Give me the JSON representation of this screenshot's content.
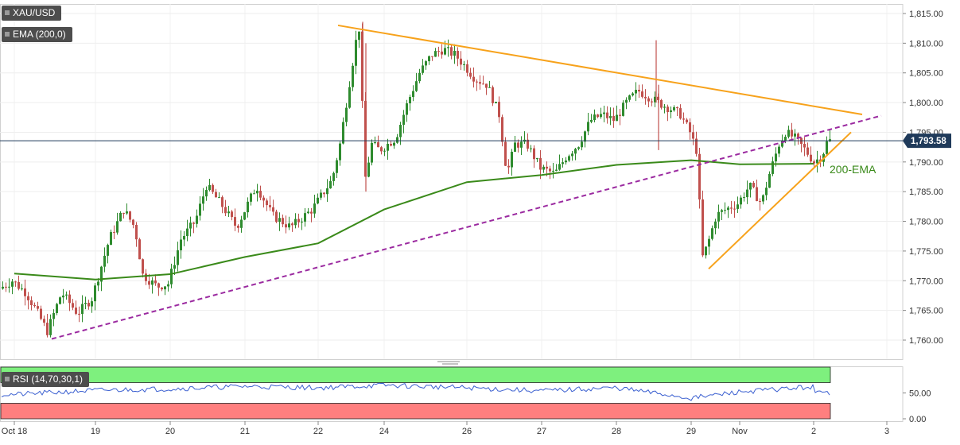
{
  "symbol_label": "XAU/USD",
  "ema_label": "EMA (200,0)",
  "ema_annotation": "200-EMA",
  "last_price_label": "1,793.58",
  "rsi_label": "RSI (14,70,30,1)",
  "colors": {
    "candle_up": "#2e8b2e",
    "candle_down": "#c0504d",
    "ema": "#3a8a1a",
    "trend_solid": "#f7a21b",
    "trend_dashed": "#9b2aa0",
    "rsi_line": "#3a5fd0",
    "overbought_zone": "#7ef07e",
    "oversold_zone": "#ff7f7f",
    "price_line": "#1f3a5a"
  },
  "chart_data": [
    {
      "type": "candlestick",
      "title": "XAU/USD",
      "x_tick_labels": [
        "Oct 18",
        "19",
        "20",
        "21",
        "22",
        "24",
        "26",
        "27",
        "28",
        "29",
        "Nov",
        "2",
        "3"
      ],
      "y_ticks": [
        "1,815.00",
        "1,810.00",
        "1,805.00",
        "1,800.00",
        "1,795.00",
        "1,790.00",
        "1,785.00",
        "1,780.00",
        "1,775.00",
        "1,770.00",
        "1,765.00",
        "1,760.00"
      ],
      "ylim": [
        1757.5,
        1816.5
      ],
      "last_price": 1793.58,
      "key_points": {
        "low": {
          "x": "Oct 18",
          "y": 1761
        },
        "high": {
          "x": "22",
          "y": 1813.6
        },
        "nov_dip": {
          "x": "29",
          "y": 1772
        },
        "close": {
          "x": "2",
          "y": 1793.6
        }
      },
      "series": [
        {
          "name": "EMA (200,0)",
          "type": "line",
          "points": [
            [
              "Oct 18",
              1771.2
            ],
            [
              "19",
              1770.2
            ],
            [
              "20",
              1771.1
            ],
            [
              "21",
              1774.0
            ],
            [
              "22",
              1776.3
            ],
            [
              "24",
              1782.0
            ],
            [
              "26",
              1786.6
            ],
            [
              "27",
              1787.8
            ],
            [
              "28",
              1789.5
            ],
            [
              "29",
              1790.3
            ],
            [
              "Nov",
              1789.6
            ],
            [
              "2",
              1789.7
            ]
          ]
        }
      ],
      "annotations": [
        {
          "type": "trendline",
          "style": "solid",
          "from": [
            "22",
            1813.0
          ],
          "to": [
            "2",
            1798.0
          ]
        },
        {
          "type": "trendline",
          "style": "dashed",
          "from": [
            "Oct 18",
            1760.2
          ],
          "to": [
            "2",
            1797.8
          ]
        },
        {
          "type": "trendline",
          "style": "solid",
          "from": [
            "29",
            1772.0
          ],
          "to": [
            "2",
            1795.0
          ]
        },
        {
          "type": "text",
          "label": "200-EMA",
          "near": "2"
        }
      ]
    },
    {
      "type": "line",
      "title": "RSI (14,70,30,1)",
      "y_ticks": [
        "50.00",
        "0.00"
      ],
      "ylim": [
        0,
        100
      ],
      "zones": {
        "overbought": [
          70,
          100
        ],
        "oversold": [
          0,
          30
        ]
      },
      "series": [
        {
          "name": "RSI (14,70,30,1)",
          "points": [
            [
              "Oct 18",
              47
            ],
            [
              "19",
              55
            ],
            [
              "20",
              58
            ],
            [
              "21",
              63
            ],
            [
              "22",
              60
            ],
            [
              "24",
              65
            ],
            [
              "26",
              60
            ],
            [
              "27",
              54
            ],
            [
              "28",
              60
            ],
            [
              "29",
              40
            ],
            [
              "Nov",
              52
            ],
            [
              "2",
              62
            ]
          ]
        }
      ]
    }
  ]
}
